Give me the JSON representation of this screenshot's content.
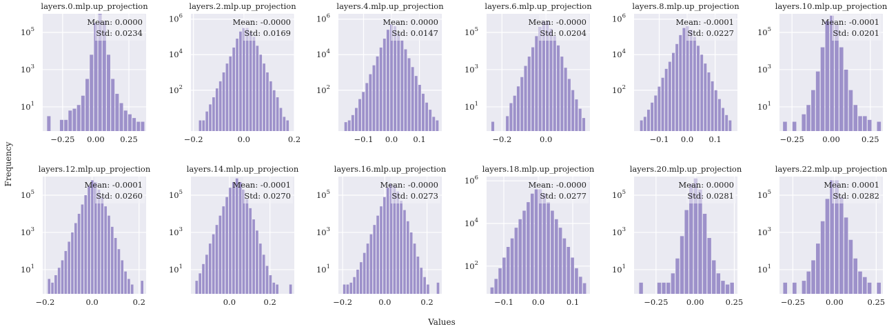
{
  "figure": {
    "ylabel": "Frequency",
    "xlabel": "Values",
    "colors": {
      "bar": "#9d91ca",
      "panel_bg": "#eaeaf2",
      "grid": "#ffffff",
      "stats_box": "#f2f2f7"
    }
  },
  "chart_data": [
    {
      "type": "bar",
      "title": "layers.0.mlp.up_projection",
      "mean": "Mean: 0.0000",
      "std": "Std: 0.0234",
      "xlim": [
        -0.4,
        0.38
      ],
      "log_ylim": [
        -0.3,
        6.0
      ],
      "xticks": [
        -0.25,
        0.0,
        0.25
      ],
      "xtick_labels": [
        "−0.25",
        "0.00",
        "0.25"
      ],
      "yticks": [
        1,
        3,
        5
      ],
      "ytick_labels": [
        "10^1",
        "10^3",
        "10^5"
      ],
      "bin_edges": [
        -0.37,
        0.37
      ],
      "log_counts": [
        0.5,
        0,
        0,
        0.3,
        0.3,
        0.8,
        0.9,
        1.1,
        1.6,
        2.5,
        3.8,
        5.5,
        6.0,
        5.6,
        3.8,
        2.5,
        1.7,
        1.2,
        0.8,
        0.6,
        0.4,
        0.2,
        0.2
      ]
    },
    {
      "type": "bar",
      "title": "layers.2.mlp.up_projection",
      "mean": "Mean: -0.0000",
      "std": "Std: 0.0169",
      "xlim": [
        -0.21,
        0.2
      ],
      "log_ylim": [
        -0.3,
        6.3
      ],
      "xticks": [
        -0.2,
        0.0,
        0.2
      ],
      "xtick_labels": [
        "−0.2",
        "0.0",
        "0.2"
      ],
      "yticks": [
        2,
        4,
        6
      ],
      "ytick_labels": [
        "10^2",
        "10^4",
        "10^6"
      ],
      "bin_edges": [
        -0.18,
        0.18
      ],
      "log_counts": [
        0.3,
        0.3,
        0.8,
        1.2,
        1.6,
        2.1,
        2.5,
        3.0,
        3.5,
        3.9,
        4.4,
        4.9,
        5.3,
        5.5,
        5.5,
        5.3,
        5.0,
        4.5,
        4.0,
        3.5,
        3.0,
        2.5,
        2.0,
        1.6,
        1.0,
        0.5,
        0.3
      ]
    },
    {
      "type": "bar",
      "title": "layers.4.mlp.up_projection",
      "mean": "Mean: 0.0000",
      "std": "Std: 0.0147",
      "xlim": [
        -0.19,
        0.18
      ],
      "log_ylim": [
        -0.3,
        6.3
      ],
      "xticks": [
        -0.1,
        0.0,
        0.1
      ],
      "xtick_labels": [
        "−0.1",
        "0.0",
        "0.1"
      ],
      "yticks": [
        2,
        4,
        6
      ],
      "ytick_labels": [
        "10^2",
        "10^4",
        "10^6"
      ],
      "bin_edges": [
        -0.17,
        0.17
      ],
      "log_counts": [
        0.2,
        0.3,
        0.6,
        1.0,
        1.5,
        1.9,
        2.4,
        2.9,
        3.4,
        3.9,
        4.4,
        4.9,
        5.4,
        5.7,
        5.6,
        5.2,
        4.8,
        4.3,
        3.8,
        3.3,
        2.8,
        2.3,
        1.8,
        1.3,
        0.9,
        0.5,
        0.3
      ]
    },
    {
      "type": "bar",
      "title": "layers.6.mlp.up_projection",
      "mean": "Mean: -0.0000",
      "std": "Std: 0.0204",
      "xlim": [
        -0.27,
        0.2
      ],
      "log_ylim": [
        -0.3,
        6.0
      ],
      "xticks": [
        -0.2,
        0.0
      ],
      "xtick_labels": [
        "−0.2",
        "0.0"
      ],
      "yticks": [
        1,
        3,
        5
      ],
      "ytick_labels": [
        "10^1",
        "10^3",
        "10^5"
      ],
      "bin_edges": [
        -0.25,
        0.18
      ],
      "log_counts": [
        0.2,
        0,
        0,
        0,
        0.5,
        1.2,
        1.6,
        2.1,
        2.6,
        3.2,
        3.7,
        4.2,
        4.8,
        5.3,
        5.6,
        5.6,
        5.2,
        4.8,
        4.3,
        3.7,
        3.1,
        2.5,
        1.9,
        1.4,
        0.9,
        0.4
      ]
    },
    {
      "type": "bar",
      "title": "layers.8.mlp.up_projection",
      "mean": "Mean: -0.0001",
      "std": "Std: 0.0227",
      "xlim": [
        -0.19,
        0.18
      ],
      "log_ylim": [
        -0.3,
        6.3
      ],
      "xticks": [
        -0.1,
        0.0,
        0.1
      ],
      "xtick_labels": [
        "−0.1",
        "0.0",
        "0.1"
      ],
      "yticks": [
        2,
        4,
        6
      ],
      "ytick_labels": [
        "10^2",
        "10^4",
        "10^6"
      ],
      "bin_edges": [
        -0.17,
        0.16
      ],
      "log_counts": [
        0.3,
        0.5,
        0.9,
        1.3,
        1.7,
        2.2,
        2.7,
        3.2,
        3.6,
        4.1,
        4.6,
        5.1,
        5.5,
        5.6,
        5.4,
        5.0,
        4.5,
        4.0,
        3.5,
        3.0,
        2.5,
        2.0,
        1.5,
        1.0,
        0.6,
        0.3
      ]
    },
    {
      "type": "bar",
      "title": "layers.10.mlp.up_projection",
      "mean": "Mean: -0.0001",
      "std": "Std: 0.0201",
      "xlim": [
        -0.33,
        0.33
      ],
      "log_ylim": [
        -0.3,
        6.0
      ],
      "xticks": [
        -0.25,
        0.0,
        0.25
      ],
      "xtick_labels": [
        "−0.25",
        "0.00",
        "0.25"
      ],
      "yticks": [
        1,
        3,
        5
      ],
      "ytick_labels": [
        "10^1",
        "10^3",
        "10^5"
      ],
      "bin_edges": [
        -0.31,
        0.32
      ],
      "log_counts": [
        0.2,
        0,
        0.2,
        0,
        0.6,
        1.1,
        1.9,
        2.9,
        4.2,
        5.6,
        5.9,
        5.4,
        4.2,
        3.0,
        1.9,
        1.1,
        0.5,
        0.5,
        0.3,
        0,
        0.2
      ]
    },
    {
      "type": "bar",
      "title": "layers.12.mlp.up_projection",
      "mean": "Mean: -0.0001",
      "std": "Std: 0.0260",
      "xlim": [
        -0.21,
        0.23
      ],
      "log_ylim": [
        -0.3,
        6.0
      ],
      "xticks": [
        -0.2,
        0.0,
        0.2
      ],
      "xtick_labels": [
        "−0.2",
        "0.0",
        "0.2"
      ],
      "yticks": [
        1,
        3,
        5
      ],
      "ytick_labels": [
        "10^1",
        "10^3",
        "10^5"
      ],
      "bin_edges": [
        -0.19,
        0.22
      ],
      "log_counts": [
        0.5,
        0.3,
        0.7,
        1.1,
        1.5,
        2.0,
        2.5,
        3.0,
        3.5,
        4.0,
        4.5,
        5.0,
        5.5,
        5.8,
        5.7,
        5.3,
        4.9,
        4.4,
        3.9,
        3.3,
        2.7,
        2.1,
        1.5,
        0.9,
        0.5,
        0.2,
        0,
        0,
        0.4
      ]
    },
    {
      "type": "bar",
      "title": "layers.14.mlp.up_projection",
      "mean": "Mean: -0.0001",
      "std": "Std: 0.0270",
      "xlim": [
        -0.19,
        0.32
      ],
      "log_ylim": [
        -0.3,
        6.0
      ],
      "xticks": [
        0.0,
        0.2
      ],
      "xtick_labels": [
        "0.0",
        "0.2"
      ],
      "yticks": [
        1,
        3,
        5
      ],
      "ytick_labels": [
        "10^1",
        "10^3",
        "10^5"
      ],
      "bin_edges": [
        -0.17,
        0.31
      ],
      "log_counts": [
        0.4,
        0.8,
        1.3,
        1.8,
        2.4,
        2.9,
        3.4,
        3.9,
        4.4,
        4.9,
        5.4,
        5.7,
        5.9,
        5.7,
        5.3,
        4.8,
        4.3,
        3.7,
        3.1,
        2.4,
        1.8,
        1.2,
        0.7,
        0.3,
        0.2,
        0,
        0,
        0,
        0.2
      ]
    },
    {
      "type": "bar",
      "title": "layers.16.mlp.up_projection",
      "mean": "Mean: -0.0000",
      "std": "Std: 0.0273",
      "xlim": [
        -0.22,
        0.27
      ],
      "log_ylim": [
        -0.3,
        6.0
      ],
      "xticks": [
        -0.2,
        0.0,
        0.2
      ],
      "xtick_labels": [
        "−0.2",
        "0.0",
        "0.2"
      ],
      "yticks": [
        1,
        3,
        5
      ],
      "ytick_labels": [
        "10^1",
        "10^3",
        "10^5"
      ],
      "bin_edges": [
        -0.2,
        0.26
      ],
      "log_counts": [
        0.2,
        0.2,
        0.3,
        0.6,
        1.0,
        1.4,
        1.9,
        2.4,
        2.9,
        3.4,
        3.9,
        4.4,
        4.9,
        5.4,
        5.6,
        5.5,
        5.2,
        4.7,
        4.2,
        3.6,
        3.0,
        2.4,
        1.7,
        1.1,
        0.6,
        0.2,
        0,
        0,
        0.3
      ]
    },
    {
      "type": "bar",
      "title": "layers.18.mlp.up_projection",
      "mean": "Mean: -0.0000",
      "std": "Std: 0.0277",
      "xlim": [
        -0.15,
        0.15
      ],
      "log_ylim": [
        0.7,
        6.2
      ],
      "xticks": [
        -0.1,
        0.0,
        0.1
      ],
      "xtick_labels": [
        "−0.1",
        "0.0",
        "0.1"
      ],
      "yticks": [
        2,
        4,
        6
      ],
      "ytick_labels": [
        "10^2",
        "10^4",
        "10^6"
      ],
      "bin_edges": [
        -0.14,
        0.14
      ],
      "log_counts": [
        1.0,
        1.4,
        1.9,
        2.4,
        2.9,
        3.3,
        3.8,
        4.2,
        4.6,
        5.0,
        5.4,
        5.6,
        5.6,
        5.4,
        5.0,
        4.6,
        4.2,
        3.8,
        3.3,
        2.9,
        2.4,
        1.9,
        1.5,
        1.2
      ]
    },
    {
      "type": "bar",
      "title": "layers.20.mlp.up_projection",
      "mean": "Mean: 0.0000",
      "std": "Std: 0.0281",
      "xlim": [
        -0.39,
        0.27
      ],
      "log_ylim": [
        -0.3,
        6.0
      ],
      "xticks": [
        -0.25,
        0.0,
        0.25
      ],
      "xtick_labels": [
        "−0.25",
        "0.00",
        "0.25"
      ],
      "yticks": [
        1,
        3,
        5
      ],
      "ytick_labels": [
        "10^1",
        "10^3",
        "10^5"
      ],
      "bin_edges": [
        -0.36,
        0.25
      ],
      "log_counts": [
        0.3,
        0,
        0,
        0,
        0.3,
        0.3,
        0.3,
        0.8,
        1.6,
        2.8,
        4.2,
        5.6,
        5.9,
        5.3,
        4.0,
        2.7,
        1.5,
        0.8,
        0.4,
        0.2,
        0.3
      ]
    },
    {
      "type": "bar",
      "title": "layers.22.mlp.up_projection",
      "mean": "Mean: 0.0001",
      "std": "Std: 0.0282",
      "xlim": [
        -0.33,
        0.29
      ],
      "log_ylim": [
        -0.3,
        6.0
      ],
      "xticks": [
        -0.25,
        0.0,
        0.25
      ],
      "xtick_labels": [
        "−0.25",
        "0.00",
        "0.25"
      ],
      "yticks": [
        1,
        3,
        5
      ],
      "ytick_labels": [
        "10^1",
        "10^3",
        "10^5"
      ],
      "bin_edges": [
        -0.31,
        0.28
      ],
      "log_counts": [
        0.3,
        0,
        0.3,
        0,
        0.4,
        0.9,
        1.5,
        2.4,
        3.6,
        4.8,
        5.8,
        5.8,
        4.9,
        3.8,
        2.6,
        1.6,
        0.9,
        0.6,
        0.3,
        0,
        0.3
      ]
    }
  ]
}
